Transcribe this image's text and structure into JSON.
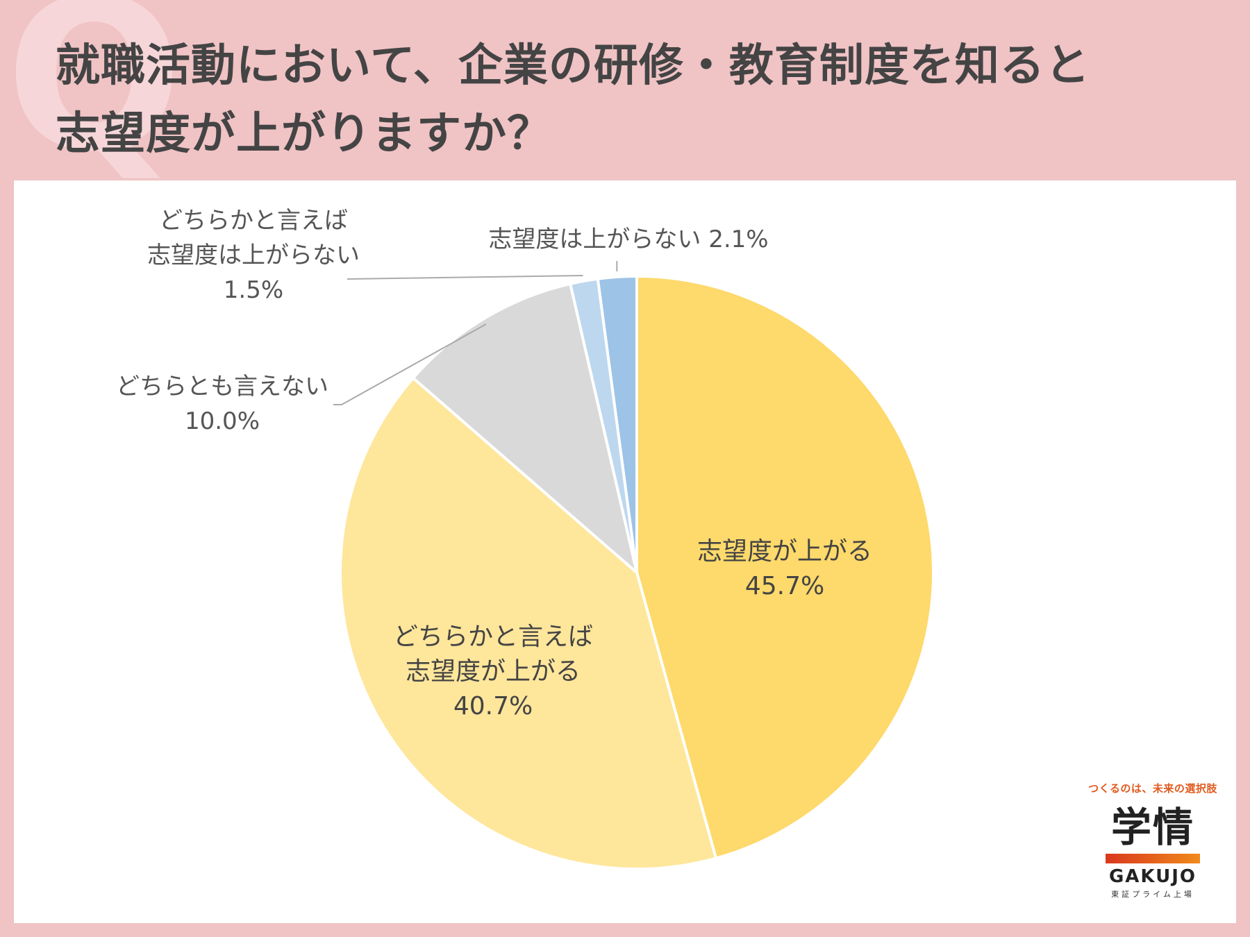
{
  "title": {
    "line1": "就職活動において、企業の研修・教育制度を知ると",
    "line2": "志望度が上がりますか？"
  },
  "decoration": {
    "q_letter": "Q"
  },
  "colors": {
    "background": "#f0c3c5",
    "panel": "#ffffff",
    "slice_strong_up": "#fed96b",
    "slice_somewhat_up": "#fee69b",
    "slice_neutral": "#d9d9d9",
    "slice_somewhat_down": "#bdd7ee",
    "slice_down": "#9dc3e6",
    "leader_line": "#aaaaaa"
  },
  "chart_data": {
    "type": "pie",
    "title": "就職活動において、企業の研修・教育制度を知ると志望度が上がりますか？",
    "slices": [
      {
        "label_lines": [
          "志望度が上がる"
        ],
        "value": 45.7,
        "value_text": "45.7%"
      },
      {
        "label_lines": [
          "どちらかと言えば",
          "志望度が上がる"
        ],
        "value": 40.7,
        "value_text": "40.7%"
      },
      {
        "label_lines": [
          "どちらとも言えない"
        ],
        "value": 10.0,
        "value_text": "10.0%"
      },
      {
        "label_lines": [
          "どちらかと言えば",
          "志望度は上がらない"
        ],
        "value": 1.5,
        "value_text": "1.5%"
      },
      {
        "label_lines": [
          "志望度は上がらない"
        ],
        "value": 2.1,
        "value_text": "2.1%"
      }
    ],
    "start": "12 o'clock",
    "direction": "clockwise"
  },
  "labels": {
    "strong_up": {
      "line1": "志望度が上がる",
      "value": "45.7%"
    },
    "somewhat_up": {
      "line1": "どちらかと言えば",
      "line2": "志望度が上がる",
      "value": "40.7%"
    },
    "neutral": {
      "line1": "どちらとも言えない",
      "value": "10.0%"
    },
    "somewhat_down": {
      "line1": "どちらかと言えば",
      "line2": "志望度は上がらない",
      "value": "1.5%"
    },
    "down": {
      "line1": "志望度は上がらない 2.1%"
    }
  },
  "logo": {
    "tagline": "つくるのは、未来の選択肢",
    "kanji": "学情",
    "name": "GAKUJO",
    "sub": "東証プライム上場"
  }
}
